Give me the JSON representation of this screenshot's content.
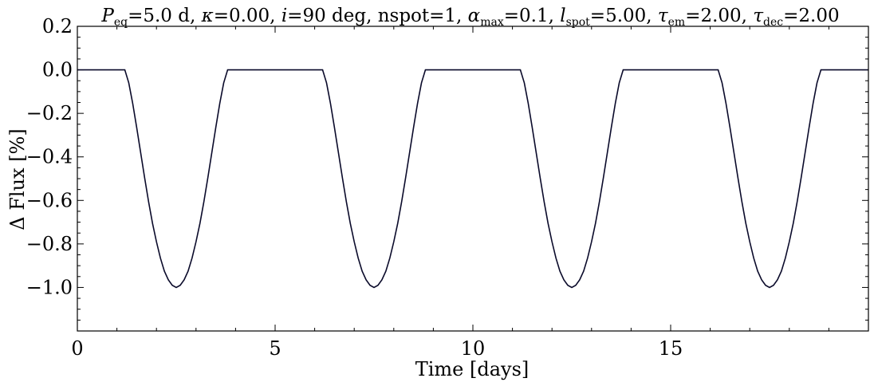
{
  "chart_data": {
    "type": "line",
    "title_parts": [
      {
        "t": "P",
        "style": "italic"
      },
      {
        "t": "eq",
        "style": "sub"
      },
      {
        "t": "=5.0 d, ",
        "style": "normal"
      },
      {
        "t": "κ",
        "style": "italic"
      },
      {
        "t": "=0.00, ",
        "style": "normal"
      },
      {
        "t": "i",
        "style": "italic"
      },
      {
        "t": "=90 deg, nspot=1, ",
        "style": "normal"
      },
      {
        "t": "α",
        "style": "italic"
      },
      {
        "t": "max",
        "style": "sub"
      },
      {
        "t": "=0.1, ",
        "style": "normal"
      },
      {
        "t": "l",
        "style": "italic"
      },
      {
        "t": "spot",
        "style": "sub"
      },
      {
        "t": "=5.00, ",
        "style": "normal"
      },
      {
        "t": "τ",
        "style": "italic"
      },
      {
        "t": "em",
        "style": "sub"
      },
      {
        "t": "=2.00, ",
        "style": "normal"
      },
      {
        "t": "τ",
        "style": "italic"
      },
      {
        "t": "dec",
        "style": "sub"
      },
      {
        "t": "=2.00",
        "style": "normal"
      }
    ],
    "xlabel": "Time [days]",
    "ylabel": "Δ Flux [%]",
    "xlim": [
      0,
      20
    ],
    "ylim": [
      -1.2,
      0.2
    ],
    "xticks": [
      0,
      5,
      10,
      15
    ],
    "xtick_labels": [
      "0",
      "5",
      "10",
      "15"
    ],
    "yticks": [
      0.2,
      0.0,
      -0.2,
      -0.4,
      -0.6,
      -0.8,
      -1.0
    ],
    "ytick_labels": [
      "0.2",
      "0.0",
      "−0.2",
      "−0.4",
      "−0.6",
      "−0.8",
      "−1.0"
    ],
    "grid": false,
    "line_color": "#0a0a2a",
    "series": [
      {
        "x": [
          0,
          1.0,
          1.2,
          1.3,
          1.4,
          1.5,
          1.6,
          1.7,
          1.8,
          1.9,
          2.0,
          2.1,
          2.2,
          2.3,
          2.4,
          2.5,
          2.6,
          2.7,
          2.8,
          2.9,
          3.0,
          3.1,
          3.2,
          3.3,
          3.4,
          3.5,
          3.6,
          3.7,
          3.8,
          4.0,
          6.0,
          6.2,
          6.3,
          6.4,
          6.5,
          6.6,
          6.7,
          6.8,
          6.9,
          7.0,
          7.1,
          7.2,
          7.3,
          7.4,
          7.5,
          7.6,
          7.7,
          7.8,
          7.9,
          8.0,
          8.1,
          8.2,
          8.3,
          8.4,
          8.5,
          8.6,
          8.7,
          8.8,
          9.0,
          11.0,
          11.2,
          11.3,
          11.4,
          11.5,
          11.6,
          11.7,
          11.8,
          11.9,
          12.0,
          12.1,
          12.2,
          12.3,
          12.4,
          12.5,
          12.6,
          12.7,
          12.8,
          12.9,
          13.0,
          13.1,
          13.2,
          13.3,
          13.4,
          13.5,
          13.6,
          13.7,
          13.8,
          14.0,
          16.0,
          16.2,
          16.3,
          16.4,
          16.5,
          16.6,
          16.7,
          16.8,
          16.9,
          17.0,
          17.1,
          17.2,
          17.3,
          17.4,
          17.5,
          17.6,
          17.7,
          17.8,
          17.9,
          18.0,
          18.1,
          18.2,
          18.3,
          18.4,
          18.5,
          18.6,
          18.7,
          18.8,
          19.0,
          20.0
        ],
        "y": [
          0,
          0,
          0,
          -0.06,
          -0.155,
          -0.265,
          -0.38,
          -0.495,
          -0.605,
          -0.705,
          -0.79,
          -0.865,
          -0.925,
          -0.965,
          -0.99,
          -1.0,
          -0.99,
          -0.965,
          -0.925,
          -0.865,
          -0.79,
          -0.705,
          -0.605,
          -0.495,
          -0.38,
          -0.265,
          -0.155,
          -0.06,
          0,
          0,
          0,
          0,
          -0.06,
          -0.155,
          -0.265,
          -0.38,
          -0.495,
          -0.605,
          -0.705,
          -0.79,
          -0.865,
          -0.925,
          -0.965,
          -0.99,
          -1.0,
          -0.99,
          -0.965,
          -0.925,
          -0.865,
          -0.79,
          -0.705,
          -0.605,
          -0.495,
          -0.38,
          -0.265,
          -0.155,
          -0.06,
          0,
          0,
          0,
          0,
          -0.06,
          -0.155,
          -0.265,
          -0.38,
          -0.495,
          -0.605,
          -0.705,
          -0.79,
          -0.865,
          -0.925,
          -0.965,
          -0.99,
          -1.0,
          -0.99,
          -0.965,
          -0.925,
          -0.865,
          -0.79,
          -0.705,
          -0.605,
          -0.495,
          -0.38,
          -0.265,
          -0.155,
          -0.06,
          0,
          0,
          0,
          0,
          -0.06,
          -0.155,
          -0.265,
          -0.38,
          -0.495,
          -0.605,
          -0.705,
          -0.79,
          -0.865,
          -0.925,
          -0.965,
          -0.99,
          -1.0,
          -0.99,
          -0.965,
          -0.925,
          -0.865,
          -0.79,
          -0.705,
          -0.605,
          -0.495,
          -0.38,
          -0.265,
          -0.155,
          -0.06,
          0,
          0,
          0
        ]
      }
    ]
  }
}
